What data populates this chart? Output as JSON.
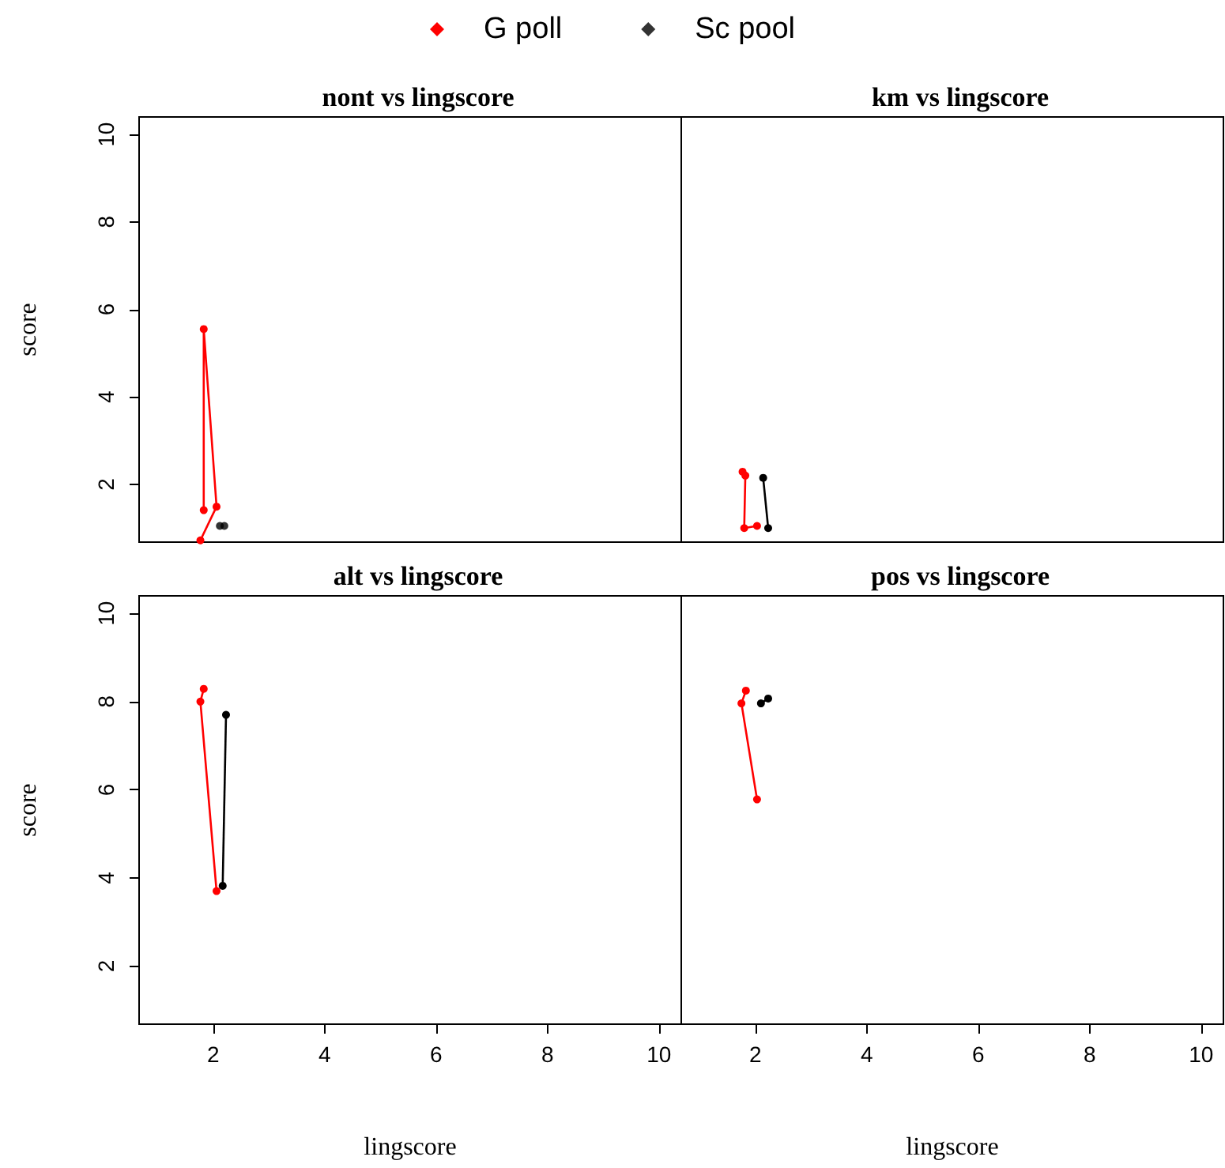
{
  "chart_data": [
    {
      "type": "line",
      "title": "nont vs lingscore",
      "ylabel": "score",
      "legend": "top",
      "marker": "circle",
      "tick_labels": "y",
      "xlim": [
        0.67,
        10.4
      ],
      "ylim": [
        0.68,
        10.4
      ],
      "xticks": [
        2,
        4,
        6,
        8,
        10
      ],
      "yticks": [
        2,
        4,
        6,
        8,
        10
      ],
      "series": [
        {
          "name": "G poll",
          "color": "#ff0000",
          "x": [
            1.83,
            1.83,
            2.06,
            1.77
          ],
          "values": [
            1.41,
            5.55,
            1.49,
            0.72
          ]
        },
        {
          "name": "Sc pool",
          "type": "scatter",
          "color": "#000000",
          "x": [
            2.12,
            2.2
          ],
          "values": [
            1.05,
            1.05
          ]
        }
      ]
    },
    {
      "type": "line",
      "title": "km vs lingscore",
      "marker": "circle",
      "tick_labels": false,
      "xlim": [
        0.67,
        10.4
      ],
      "ylim": [
        0.68,
        10.4
      ],
      "xticks": [
        2,
        4,
        6,
        8,
        10
      ],
      "yticks": [
        2,
        4,
        6,
        8,
        10
      ],
      "series": [
        {
          "color": "#ff0000",
          "x": [
            1.77,
            1.82,
            1.8,
            2.03
          ],
          "values": [
            2.29,
            2.2,
            1.0,
            1.05
          ]
        },
        {
          "color": "#000000",
          "x": [
            2.14,
            2.23
          ],
          "values": [
            2.15,
            1.0
          ]
        }
      ]
    },
    {
      "type": "line",
      "title": "alt vs lingscore",
      "xlabel": "lingscore",
      "ylabel": "score",
      "marker": "circle",
      "xlim": [
        0.67,
        10.4
      ],
      "ylim": [
        0.68,
        10.4
      ],
      "xticks": [
        2,
        4,
        6,
        8,
        10
      ],
      "yticks": [
        2,
        4,
        6,
        8,
        10
      ],
      "series": [
        {
          "color": "#ff0000",
          "x": [
            1.83,
            1.77,
            2.06
          ],
          "values": [
            8.29,
            8.0,
            3.7
          ]
        },
        {
          "color": "#000000",
          "x": [
            2.23,
            2.17
          ],
          "values": [
            7.7,
            3.82
          ]
        }
      ]
    },
    {
      "type": "line",
      "title": "pos vs lingscore",
      "xlabel": "lingscore",
      "marker": "circle",
      "tick_labels": "x",
      "xlim": [
        0.67,
        10.4
      ],
      "ylim": [
        0.68,
        10.4
      ],
      "xticks": [
        2,
        4,
        6,
        8,
        10
      ],
      "yticks": [
        2,
        4,
        6,
        8,
        10
      ],
      "series": [
        {
          "color": "#ff0000",
          "x": [
            1.83,
            1.75,
            2.03
          ],
          "values": [
            8.25,
            7.96,
            5.78
          ]
        },
        {
          "color": "#000000",
          "x": [
            2.1,
            2.23
          ],
          "values": [
            7.96,
            8.07
          ]
        }
      ]
    }
  ]
}
